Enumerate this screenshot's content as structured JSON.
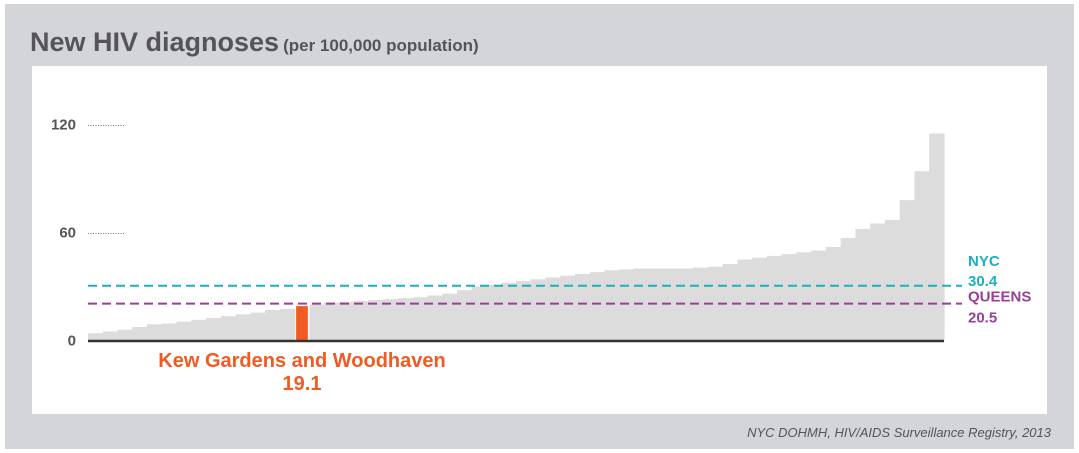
{
  "header": {
    "title": "New HIV diagnoses",
    "subtitle": "(per 100,000 population)"
  },
  "footer": {
    "source": "NYC DOHMH, HIV/AIDS Surveillance Registry, 2013"
  },
  "colors": {
    "bars": "#dcdcdd",
    "highlight": "#f15a22",
    "nyc": "#1ab0c4",
    "queens": "#9b3e96",
    "axis": "#333333",
    "text": "#555559",
    "frame": "#d3d5d9"
  },
  "chart_data": {
    "type": "bar",
    "sorted": "ascending",
    "ylim": [
      0,
      130
    ],
    "yticks": [
      0,
      60,
      120
    ],
    "values": [
      4,
      5,
      6,
      7.5,
      9,
      9.5,
      10.5,
      11.5,
      12.5,
      13.5,
      14.5,
      15.5,
      17,
      17.5,
      19.1,
      20,
      21,
      21.5,
      22,
      22.5,
      23,
      23.5,
      24,
      25,
      26,
      28,
      30,
      31,
      32,
      33,
      34,
      35,
      36,
      37,
      38,
      39,
      39.5,
      40,
      40,
      40,
      40,
      40.5,
      41,
      42.5,
      45,
      46,
      47,
      48,
      49,
      50,
      52,
      57,
      62,
      65,
      67,
      78,
      94,
      115
    ],
    "highlight": {
      "index": 14,
      "label": "Kew Gardens and Woodhaven",
      "value_label": "19.1",
      "value": 19.1
    },
    "reference_lines": [
      {
        "name": "NYC",
        "value_label": "30.4",
        "value": 30.4,
        "style": "dashed"
      },
      {
        "name": "QUEENS",
        "value_label": "20.5",
        "value": 20.5,
        "style": "dashed"
      }
    ]
  }
}
